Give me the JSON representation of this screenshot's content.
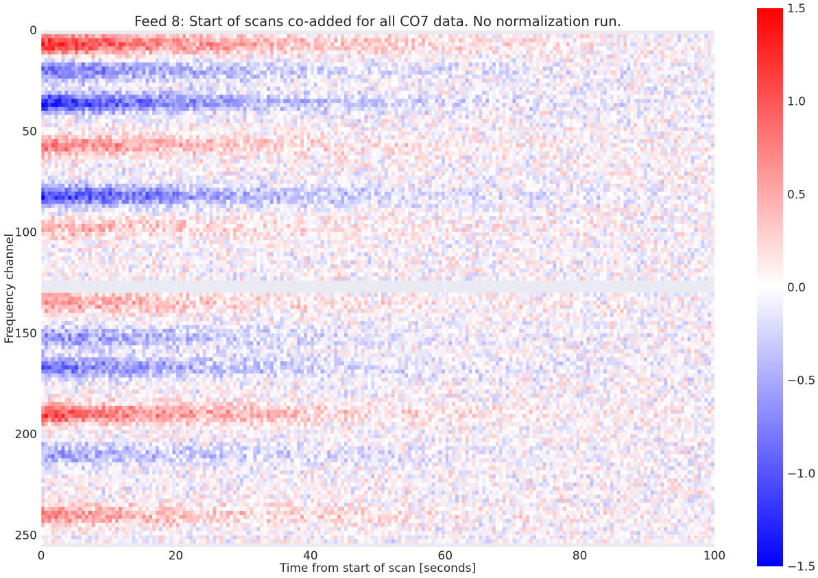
{
  "chart_data": {
    "type": "heatmap",
    "title": "Feed 8: Start of scans co-added for all CO7 data. No normalization run.",
    "xlabel": "Time from start of scan [seconds]",
    "ylabel": "Frequency channel",
    "xlim": [
      0,
      100
    ],
    "ylim": [
      256,
      0
    ],
    "xticks": [
      0,
      20,
      40,
      60,
      80,
      100
    ],
    "xtick_labels": [
      "0",
      "20",
      "40",
      "60",
      "80",
      "100"
    ],
    "yticks": [
      0,
      50,
      100,
      150,
      200,
      250
    ],
    "ytick_labels": [
      "0",
      "50",
      "100",
      "150",
      "200",
      "250"
    ],
    "colormap": "bwr",
    "clim": [
      -1.5,
      1.5
    ],
    "colorbar_ticks": [
      1.5,
      1.0,
      0.5,
      0.0,
      -0.5,
      -1.0,
      -1.5
    ],
    "colorbar_tick_labels": [
      "1.5",
      "1.0",
      "0.5",
      "0.0",
      "−0.5",
      "−1.0",
      "−1.5"
    ],
    "grid": true,
    "masked_channels": [
      [
        0,
        2
      ],
      [
        123,
        130
      ],
      [
        253,
        256
      ]
    ],
    "band_profile": [
      {
        "channel": 7,
        "value": 1.3
      },
      {
        "channel": 20,
        "value": -0.9
      },
      {
        "channel": 36,
        "value": -1.3
      },
      {
        "channel": 57,
        "value": 0.8
      },
      {
        "channel": 82,
        "value": -1.2
      },
      {
        "channel": 98,
        "value": 0.5
      },
      {
        "channel": 135,
        "value": 0.6
      },
      {
        "channel": 152,
        "value": -0.7
      },
      {
        "channel": 167,
        "value": -0.9
      },
      {
        "channel": 190,
        "value": 1.1
      },
      {
        "channel": 210,
        "value": -0.6
      },
      {
        "channel": 240,
        "value": 0.7
      }
    ],
    "band_decay_seconds": 30,
    "background": "#eaeaf2",
    "gridline_color": "#ffffff"
  }
}
